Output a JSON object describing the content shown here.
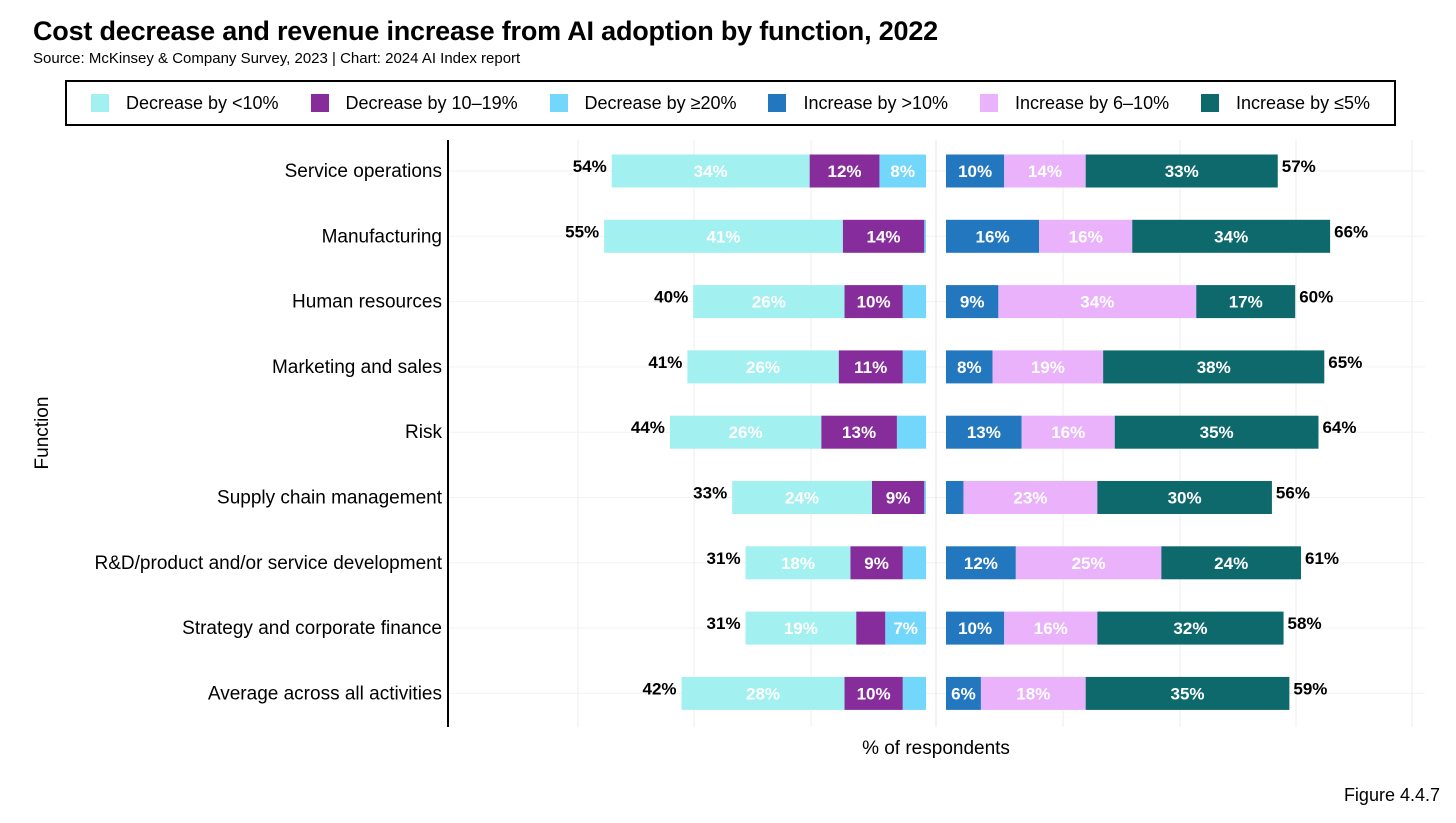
{
  "header": {
    "title": "Cost decrease and revenue increase from AI adoption by function, 2022",
    "subtitle": "Source: McKinsey & Company Survey, 2023 | Chart: 2024 AI Index report"
  },
  "figure_label": "Figure 4.4.7",
  "colors": {
    "decrease_lt10": "#a2f0ef",
    "decrease_10_19": "#862d9b",
    "decrease_ge20": "#73d7fb",
    "increase_gt10": "#2277bf",
    "increase_6_10": "#e9b2fa",
    "increase_le5": "#0d696c"
  },
  "chart_data": {
    "type": "bar",
    "orientation": "horizontal",
    "stacked": true,
    "diverging": true,
    "title": "Cost decrease and revenue increase from AI adoption by function, 2022",
    "subtitle": "Source: McKinsey & Company Survey, 2023 | Chart: 2024 AI Index report",
    "xlabel": "% of respondents",
    "ylabel": "Function",
    "grid": true,
    "legend_position": "top",
    "categories": [
      "Service operations",
      "Manufacturing",
      "Human resources",
      "Marketing and sales",
      "Risk",
      "Supply chain management",
      "R&D/product and/or service development",
      "Strategy and corporate finance",
      "Average across all activities"
    ],
    "cost_series": [
      {
        "name": "Decrease by <10%",
        "color_key": "decrease_lt10",
        "label_color": "#ffffff",
        "values": [
          34,
          41,
          26,
          26,
          26,
          24,
          18,
          19,
          28
        ],
        "labels": [
          "34%",
          "41%",
          "26%",
          "26%",
          "26%",
          "24%",
          "18%",
          "19%",
          "28%"
        ]
      },
      {
        "name": "Decrease by 10–19%",
        "color_key": "decrease_10_19",
        "label_color": "#ffffff",
        "values": [
          12,
          14,
          10,
          11,
          13,
          9,
          9,
          5,
          10
        ],
        "labels": [
          "12%",
          "14%",
          "10%",
          "11%",
          "13%",
          "9%",
          "9%",
          "",
          "10%"
        ]
      },
      {
        "name": "Decrease by ≥20%",
        "color_key": "decrease_ge20",
        "label_color": "#ffffff",
        "values": [
          8,
          0.3,
          4,
          4,
          5,
          0.3,
          4,
          7,
          4
        ],
        "labels": [
          "8%",
          "",
          "",
          "",
          "",
          "",
          "",
          "7%",
          ""
        ]
      }
    ],
    "revenue_series": [
      {
        "name": "Increase by >10%",
        "color_key": "increase_gt10",
        "label_color": "#ffffff",
        "values": [
          10,
          16,
          9,
          8,
          13,
          3,
          12,
          10,
          6
        ],
        "labels": [
          "10%",
          "16%",
          "9%",
          "8%",
          "13%",
          "",
          "12%",
          "10%",
          "6%"
        ]
      },
      {
        "name": "Increase by 6–10%",
        "color_key": "increase_6_10",
        "label_color": "#ffffff",
        "values": [
          14,
          16,
          34,
          19,
          16,
          23,
          25,
          16,
          18
        ],
        "labels": [
          "14%",
          "16%",
          "34%",
          "19%",
          "16%",
          "23%",
          "25%",
          "16%",
          "18%"
        ]
      },
      {
        "name": "Increase by ≤5%",
        "color_key": "increase_le5",
        "label_color": "#ffffff",
        "values": [
          33,
          34,
          17,
          38,
          35,
          30,
          24,
          32,
          35
        ],
        "labels": [
          "33%",
          "34%",
          "17%",
          "38%",
          "35%",
          "30%",
          "24%",
          "32%",
          "35%"
        ]
      }
    ],
    "cost_totals": [
      "54%",
      "55%",
      "40%",
      "41%",
      "44%",
      "33%",
      "31%",
      "31%",
      "42%"
    ],
    "revenue_totals": [
      "57%",
      "66%",
      "60%",
      "65%",
      "64%",
      "56%",
      "61%",
      "58%",
      "59%"
    ]
  }
}
